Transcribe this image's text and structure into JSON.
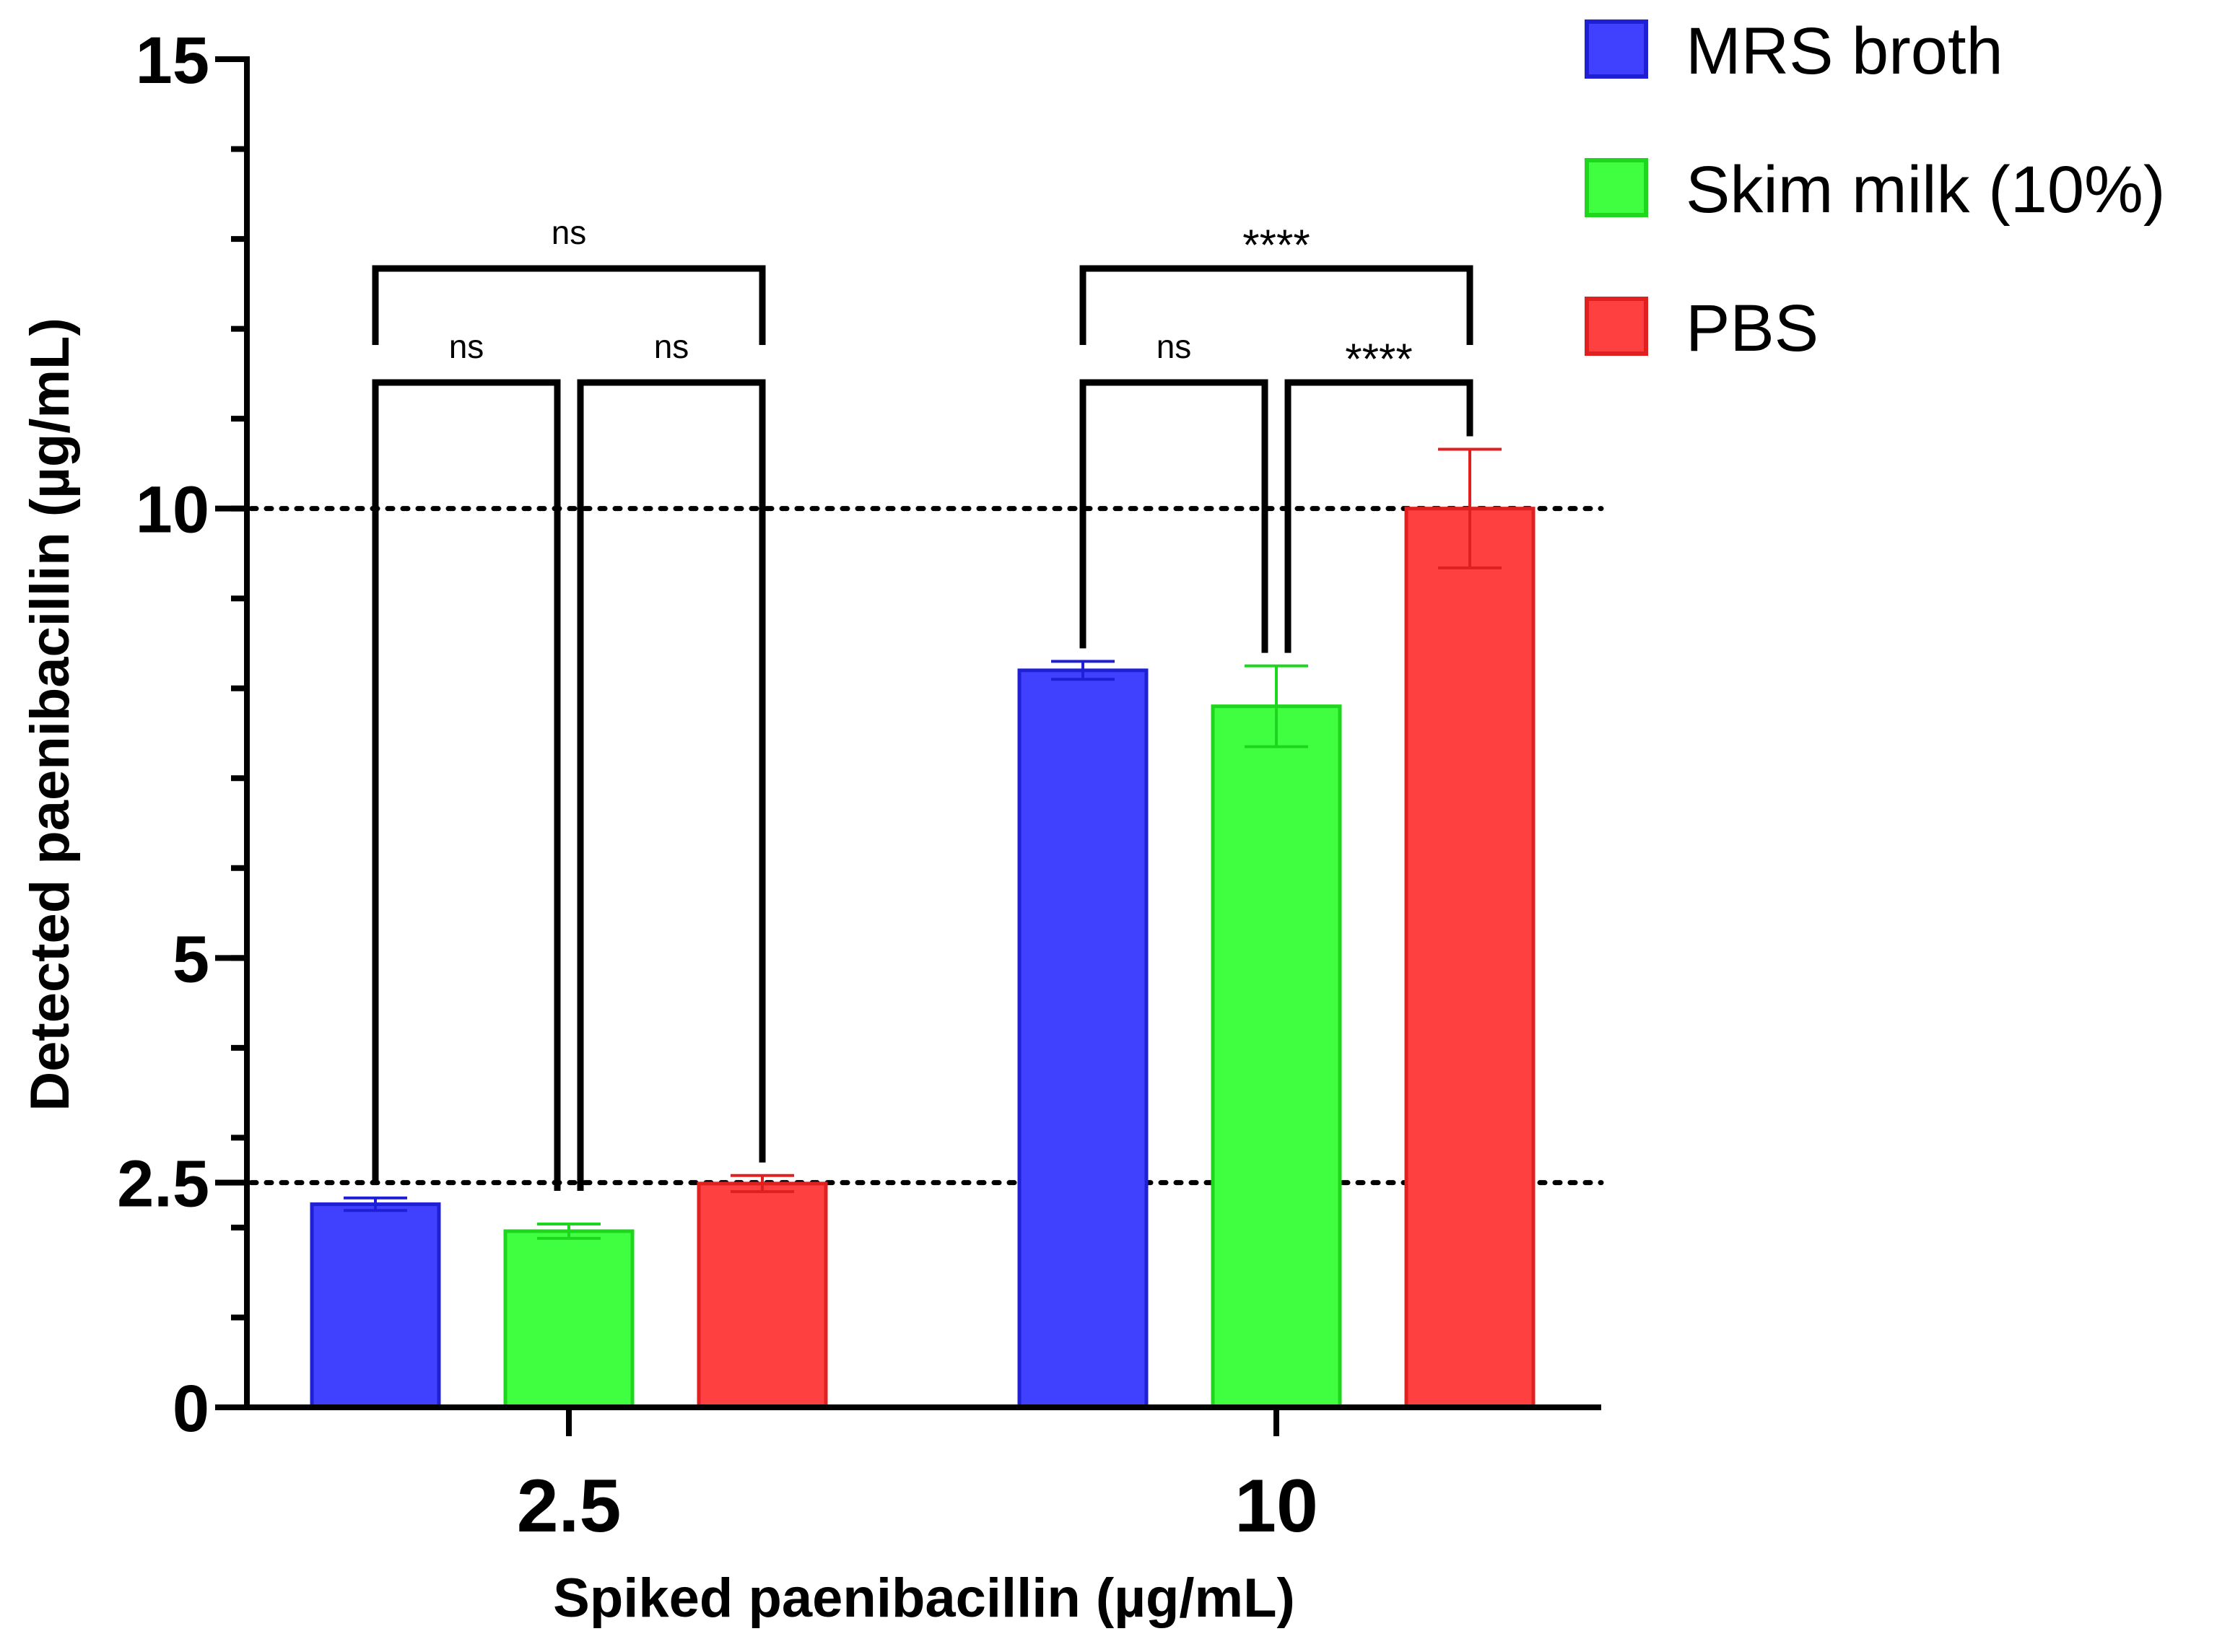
{
  "chart_data": {
    "type": "bar",
    "title": "",
    "xlabel": "Spiked paenibacillin (µg/mL)",
    "ylabel": "Detected paenibacillin (µg/mL)",
    "ylim": [
      0,
      15
    ],
    "yticks": [
      {
        "value": 0,
        "label": "0"
      },
      {
        "value": 2.5,
        "label": "2.5"
      },
      {
        "value": 5,
        "label": "5"
      },
      {
        "value": 10,
        "label": "10"
      },
      {
        "value": 15,
        "label": "15"
      }
    ],
    "minor_tick_step": 1,
    "categories": [
      "2.5",
      "10"
    ],
    "series": [
      {
        "name": "MRS broth",
        "color": "#4040ff",
        "edge": "#1f1fd6",
        "values": [
          2.26,
          8.2
        ],
        "errors": [
          0.07,
          0.1
        ]
      },
      {
        "name": "Skim milk (10%)",
        "color": "#40ff40",
        "edge": "#1fd61f",
        "values": [
          1.96,
          7.8
        ],
        "errors": [
          0.08,
          0.45
        ]
      },
      {
        "name": "PBS",
        "color": "#ff4040",
        "edge": "#e01f1f",
        "values": [
          2.49,
          10.0
        ],
        "errors": [
          0.09,
          0.66
        ]
      }
    ],
    "reference_lines": [
      2.5,
      10
    ],
    "legend_position": "top-right",
    "significance": [
      {
        "category": 0,
        "from_series": 0,
        "to_series": 1,
        "label": "ns",
        "tier": 1
      },
      {
        "category": 0,
        "from_series": 1,
        "to_series": 2,
        "label": "ns",
        "tier": 1
      },
      {
        "category": 0,
        "from_series": 0,
        "to_series": 2,
        "label": "ns",
        "tier": 2
      },
      {
        "category": 1,
        "from_series": 0,
        "to_series": 1,
        "label": "ns",
        "tier": 1
      },
      {
        "category": 1,
        "from_series": 1,
        "to_series": 2,
        "label": "****",
        "tier": 1
      },
      {
        "category": 1,
        "from_series": 0,
        "to_series": 2,
        "label": "****",
        "tier": 2
      }
    ]
  }
}
